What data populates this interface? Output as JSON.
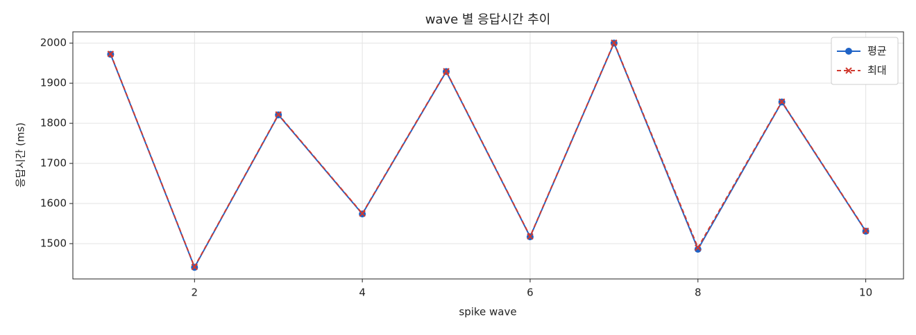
{
  "chart_data": {
    "type": "line",
    "title": "wave 별 응답시간 추이",
    "x_label": "spike wave",
    "y_label": "응답시간 (ms)",
    "x": [
      1,
      2,
      3,
      4,
      5,
      6,
      7,
      8,
      9,
      10
    ],
    "series": [
      {
        "name": "평균",
        "color": "#1f63c6",
        "marker": "o",
        "dash": false,
        "values": [
          1972,
          1441,
          1821,
          1574,
          1929,
          1517,
          2000,
          1486,
          1853,
          1531
        ]
      },
      {
        "name": "최대",
        "color": "#d03a30",
        "marker": "x",
        "dash": true,
        "values": [
          1973,
          1442,
          1822,
          1575,
          1930,
          1518,
          2001,
          1490,
          1854,
          1532
        ]
      }
    ],
    "xlim": [
      0.55,
      10.45
    ],
    "ylim": [
      1412,
      2028
    ],
    "xticks": [
      2,
      4,
      6,
      8,
      10
    ],
    "yticks": [
      1500,
      1600,
      1700,
      1800,
      1900,
      2000
    ],
    "grid": true,
    "legend": "upper right"
  }
}
